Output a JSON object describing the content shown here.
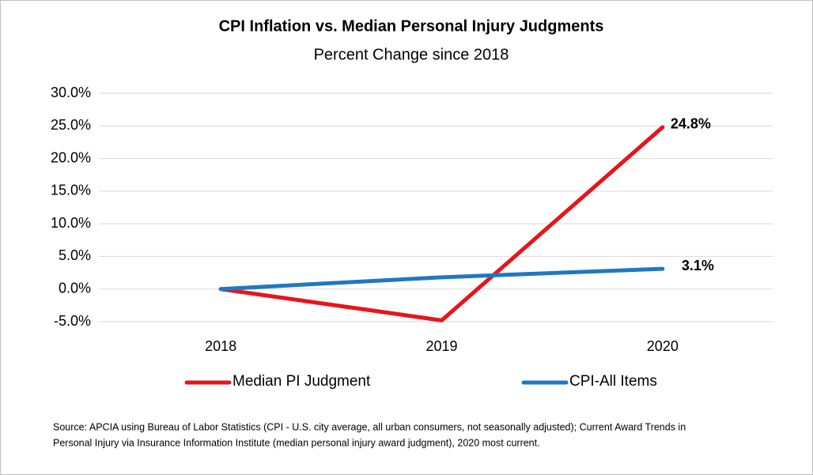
{
  "chart_data": {
    "type": "line",
    "title": "CPI Inflation vs. Median Personal Injury Judgments",
    "subtitle": "Percent Change since 2018",
    "categories": [
      "2018",
      "2019",
      "2020"
    ],
    "series": [
      {
        "name": "Median PI Judgment",
        "color": "#e8141b",
        "values": [
          0,
          -4.8,
          24.8
        ],
        "value_labels": [
          null,
          null,
          "24.8%"
        ]
      },
      {
        "name": "CPI-All Items",
        "color": "#1f78c1",
        "values": [
          0,
          1.8,
          3.1
        ],
        "value_labels": [
          null,
          null,
          "3.1%"
        ]
      }
    ],
    "ylim": [
      -5,
      30
    ],
    "yticks": [
      {
        "value": -5,
        "label": "-5.0%"
      },
      {
        "value": 0,
        "label": "0.0%"
      },
      {
        "value": 5,
        "label": "5.0%"
      },
      {
        "value": 10,
        "label": "10.0%"
      },
      {
        "value": 15,
        "label": "15.0%"
      },
      {
        "value": 20,
        "label": "20.0%"
      },
      {
        "value": 25,
        "label": "25.0%"
      },
      {
        "value": 30,
        "label": "30.0%"
      }
    ],
    "grid": true,
    "legend": "bottom",
    "source": [
      "Source: APCIA using Bureau of Labor Statistics (CPI - U.S. city average, all urban consumers, not seasonally adjusted); Current Award Trends in",
      "Personal Injury via Insurance Information Institute (median personal injury award judgment), 2020 most current."
    ]
  }
}
